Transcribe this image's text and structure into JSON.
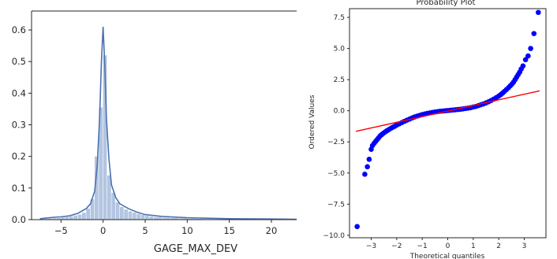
{
  "chart_data": [
    {
      "type": "histogram",
      "title": "",
      "xlabel": "GAGE_MAX_DEV",
      "ylabel": "",
      "xlim": [
        -8.5,
        23
      ],
      "ylim": [
        0,
        0.66
      ],
      "xticks": [
        -5,
        0,
        5,
        10,
        15,
        20
      ],
      "yticks": [
        0.0,
        0.1,
        0.2,
        0.3,
        0.4,
        0.5,
        0.6
      ],
      "ytick_labels": [
        "0.0",
        "0.1",
        "0.2",
        "0.3",
        "0.4",
        "0.5",
        "0.6"
      ],
      "grid": false,
      "bar_color": "#b3c5e0",
      "kde_color": "#4c72b0",
      "bins": [
        {
          "x0": -7.0,
          "x1": -6.5,
          "density": 0.002
        },
        {
          "x0": -6.5,
          "x1": -6.0,
          "density": 0.003
        },
        {
          "x0": -6.0,
          "x1": -5.5,
          "density": 0.004
        },
        {
          "x0": -5.5,
          "x1": -5.0,
          "density": 0.005
        },
        {
          "x0": -5.0,
          "x1": -4.5,
          "density": 0.007
        },
        {
          "x0": -4.5,
          "x1": -4.0,
          "density": 0.008
        },
        {
          "x0": -4.0,
          "x1": -3.5,
          "density": 0.01
        },
        {
          "x0": -3.5,
          "x1": -3.0,
          "density": 0.013
        },
        {
          "x0": -3.0,
          "x1": -2.5,
          "density": 0.016
        },
        {
          "x0": -2.5,
          "x1": -2.0,
          "density": 0.022
        },
        {
          "x0": -2.0,
          "x1": -1.5,
          "density": 0.035
        },
        {
          "x0": -1.5,
          "x1": -1.0,
          "density": 0.065
        },
        {
          "x0": -1.0,
          "x1": -0.5,
          "density": 0.2
        },
        {
          "x0": -0.5,
          "x1": 0.0,
          "density": 0.355
        },
        {
          "x0": 0.0,
          "x1": 0.5,
          "density": 0.52
        },
        {
          "x0": 0.5,
          "x1": 1.0,
          "density": 0.14
        },
        {
          "x0": 1.0,
          "x1": 1.5,
          "density": 0.085
        },
        {
          "x0": 1.5,
          "x1": 2.0,
          "density": 0.055
        },
        {
          "x0": 2.0,
          "x1": 2.5,
          "density": 0.04
        },
        {
          "x0": 2.5,
          "x1": 3.0,
          "density": 0.032
        },
        {
          "x0": 3.0,
          "x1": 3.5,
          "density": 0.026
        },
        {
          "x0": 3.5,
          "x1": 4.0,
          "density": 0.022
        },
        {
          "x0": 4.0,
          "x1": 4.5,
          "density": 0.018
        },
        {
          "x0": 4.5,
          "x1": 5.0,
          "density": 0.015
        },
        {
          "x0": 5.0,
          "x1": 5.5,
          "density": 0.012
        },
        {
          "x0": 5.5,
          "x1": 6.0,
          "density": 0.01
        },
        {
          "x0": 6.0,
          "x1": 7.0,
          "density": 0.008
        },
        {
          "x0": 7.0,
          "x1": 8.0,
          "density": 0.006
        },
        {
          "x0": 8.0,
          "x1": 9.0,
          "density": 0.005
        },
        {
          "x0": 9.0,
          "x1": 10.0,
          "density": 0.004
        },
        {
          "x0": 10.0,
          "x1": 11.0,
          "density": 0.003
        },
        {
          "x0": 11.0,
          "x1": 12.0,
          "density": 0.0025
        },
        {
          "x0": 12.0,
          "x1": 13.0,
          "density": 0.002
        },
        {
          "x0": 13.0,
          "x1": 14.0,
          "density": 0.0015
        },
        {
          "x0": 14.0,
          "x1": 15.0,
          "density": 0.001
        },
        {
          "x0": 15.0,
          "x1": 17.0,
          "density": 0.0008
        },
        {
          "x0": 17.0,
          "x1": 20.0,
          "density": 0.0005
        },
        {
          "x0": 20.0,
          "x1": 23.0,
          "density": 0.0003
        }
      ],
      "kde": {
        "x": [
          -7.5,
          -6,
          -5,
          -4,
          -3,
          -2,
          -1.5,
          -1,
          -0.7,
          -0.4,
          -0.2,
          0,
          0.2,
          0.4,
          0.7,
          1,
          1.5,
          2,
          3,
          4,
          5,
          7,
          10,
          15,
          20,
          23
        ],
        "y": [
          0.003,
          0.007,
          0.009,
          0.012,
          0.02,
          0.035,
          0.05,
          0.09,
          0.17,
          0.33,
          0.5,
          0.61,
          0.49,
          0.32,
          0.19,
          0.11,
          0.07,
          0.05,
          0.035,
          0.024,
          0.016,
          0.01,
          0.006,
          0.003,
          0.002,
          0.001
        ]
      }
    },
    {
      "type": "scatter",
      "title": "Probability Plot",
      "xlabel": "Theoretical quantiles",
      "ylabel": "Ordered Values",
      "xlim": [
        -3.85,
        3.85
      ],
      "ylim": [
        -10.2,
        8.2
      ],
      "xticks": [
        -3,
        -2,
        -1,
        0,
        1,
        2,
        3
      ],
      "xtick_labels": [
        "−3",
        "−2",
        "−1",
        "0",
        "1",
        "2",
        "3"
      ],
      "yticks": [
        -10.0,
        -7.5,
        -5.0,
        -2.5,
        0.0,
        2.5,
        5.0,
        7.5
      ],
      "ytick_labels": [
        "−10.0",
        "−7.5",
        "−5.0",
        "−2.5",
        "0.0",
        "2.5",
        "5.0",
        "7.5"
      ],
      "grid": false,
      "marker_color": "#0000ff",
      "fit_line_color": "#ff0000",
      "fit_line": {
        "x": [
          -3.6,
          3.6
        ],
        "y": [
          -1.65,
          1.6
        ]
      },
      "points": {
        "x": [
          -3.55,
          -3.25,
          -3.15,
          -3.08,
          -3.0,
          -2.95,
          -2.88,
          -2.82,
          -2.76,
          -2.7,
          -2.64,
          -2.58,
          -2.52,
          -2.45,
          -2.38,
          -2.3,
          -2.22,
          -2.15,
          -2.08,
          -2.0,
          -1.9,
          -1.8,
          -1.7,
          -1.6,
          -1.5,
          -1.4,
          -1.3,
          -1.2,
          -1.1,
          -1.0,
          -0.9,
          -0.8,
          -0.7,
          -0.6,
          -0.5,
          -0.4,
          -0.3,
          -0.2,
          -0.1,
          0.0,
          0.1,
          0.2,
          0.3,
          0.4,
          0.5,
          0.6,
          0.7,
          0.8,
          0.9,
          1.0,
          1.1,
          1.2,
          1.3,
          1.4,
          1.5,
          1.6,
          1.7,
          1.8,
          1.9,
          2.0,
          2.08,
          2.15,
          2.22,
          2.3,
          2.38,
          2.45,
          2.52,
          2.58,
          2.64,
          2.7,
          2.76,
          2.82,
          2.88,
          2.95,
          3.05,
          3.15,
          3.25,
          3.38,
          3.55
        ],
        "y": [
          -9.3,
          -5.1,
          -4.5,
          -3.9,
          -3.1,
          -2.8,
          -2.6,
          -2.45,
          -2.3,
          -2.15,
          -2.0,
          -1.9,
          -1.8,
          -1.7,
          -1.6,
          -1.5,
          -1.4,
          -1.32,
          -1.25,
          -1.15,
          -1.05,
          -0.95,
          -0.85,
          -0.76,
          -0.67,
          -0.58,
          -0.5,
          -0.43,
          -0.37,
          -0.31,
          -0.26,
          -0.21,
          -0.17,
          -0.13,
          -0.1,
          -0.07,
          -0.04,
          -0.02,
          0.0,
          0.02,
          0.04,
          0.06,
          0.08,
          0.1,
          0.12,
          0.15,
          0.18,
          0.21,
          0.25,
          0.3,
          0.35,
          0.41,
          0.48,
          0.55,
          0.63,
          0.72,
          0.82,
          0.93,
          1.05,
          1.18,
          1.3,
          1.42,
          1.55,
          1.7,
          1.85,
          2.0,
          2.15,
          2.3,
          2.5,
          2.7,
          2.9,
          3.1,
          3.35,
          3.6,
          4.1,
          4.4,
          5.0,
          6.2,
          7.9
        ]
      }
    }
  ]
}
